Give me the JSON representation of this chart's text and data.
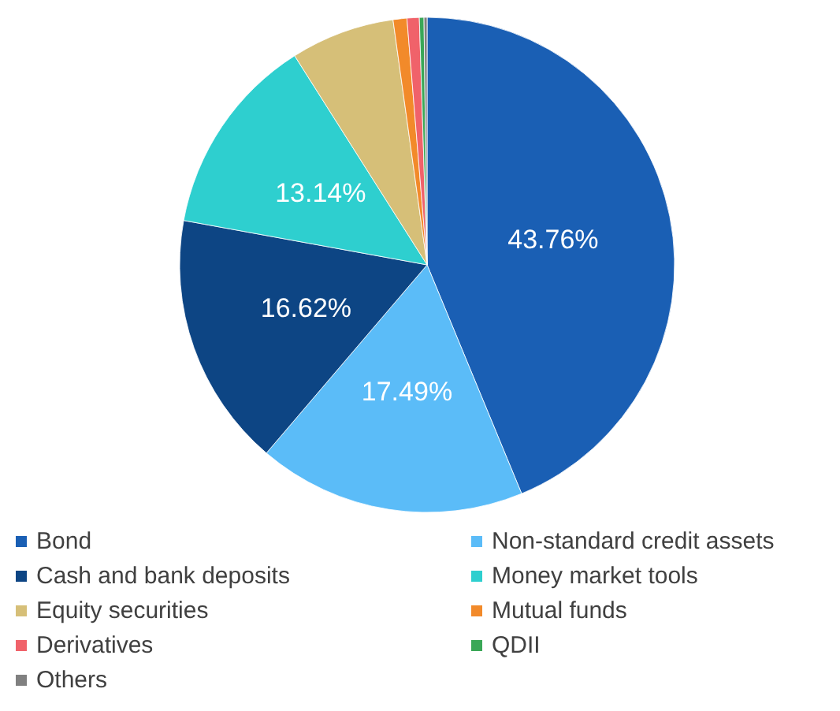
{
  "chart_data": {
    "type": "pie",
    "categories": [
      "Bond",
      "Non-standard credit assets",
      "Cash and bank deposits",
      "Money market tools",
      "Equity securities",
      "Mutual funds",
      "Derivatives",
      "QDII",
      "Others"
    ],
    "values": [
      43.76,
      17.49,
      16.62,
      13.14,
      6.79,
      0.9,
      0.8,
      0.3,
      0.2
    ],
    "value_labels": [
      "43.76%",
      "17.49%",
      "16.62%",
      "13.14%",
      null,
      null,
      null,
      null,
      null
    ],
    "colors": [
      "#1a5fb4",
      "#5bbcf8",
      "#0d4584",
      "#2ecfcf",
      "#d6bf78",
      "#f28a2a",
      "#f0626a",
      "#3aa757",
      "#808080"
    ],
    "legend": "bottom"
  }
}
